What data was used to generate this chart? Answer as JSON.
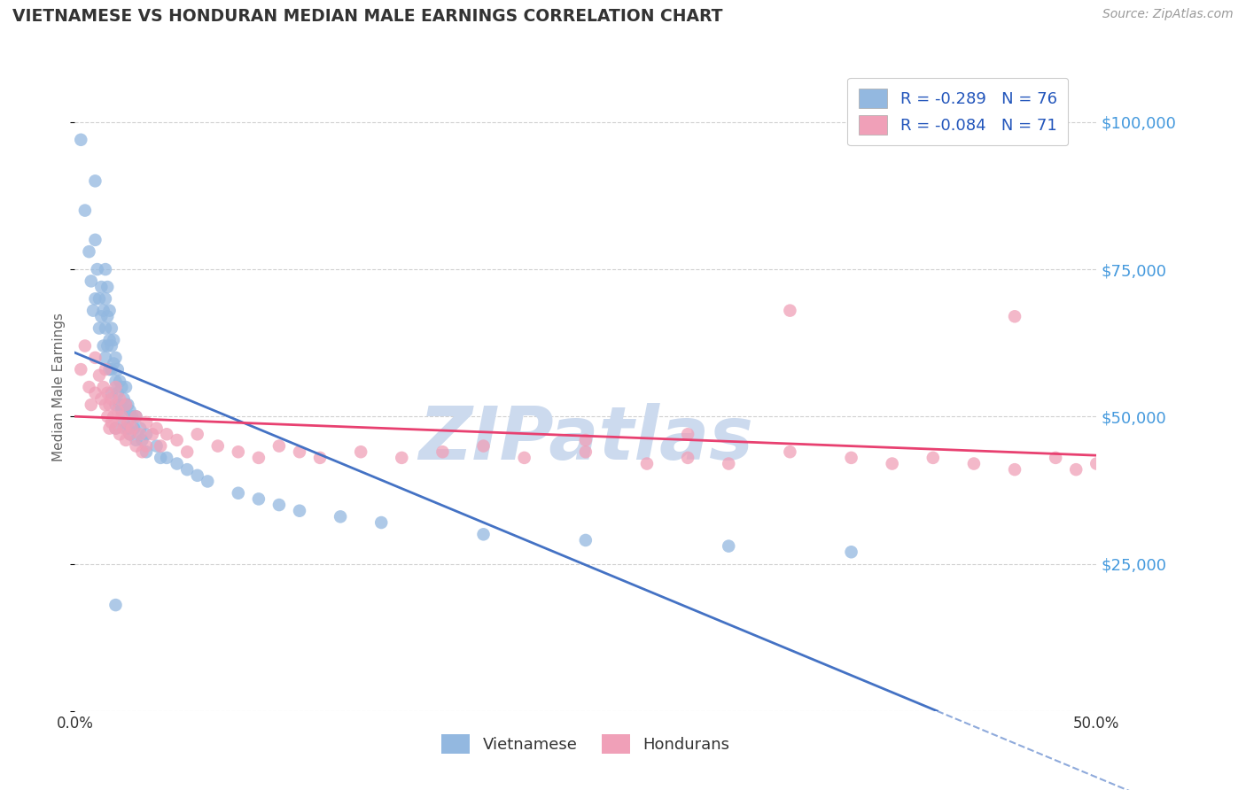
{
  "title": "VIETNAMESE VS HONDURAN MEDIAN MALE EARNINGS CORRELATION CHART",
  "source_text": "Source: ZipAtlas.com",
  "ylabel": "Median Male Earnings",
  "xlim": [
    0.0,
    0.5
  ],
  "ylim": [
    0,
    110000
  ],
  "yticks": [
    0,
    25000,
    50000,
    75000,
    100000
  ],
  "ytick_labels": [
    "",
    "$25,000",
    "$50,000",
    "$75,000",
    "$100,000"
  ],
  "xticks": [
    0.0,
    0.05,
    0.1,
    0.15,
    0.2,
    0.25,
    0.3,
    0.35,
    0.4,
    0.45,
    0.5
  ],
  "xtick_labels": [
    "0.0%",
    "",
    "",
    "",
    "",
    "",
    "",
    "",
    "",
    "",
    "50.0%"
  ],
  "background_color": "#ffffff",
  "grid_color": "#d0d0d0",
  "vietnamese_color": "#93b8e0",
  "honduran_color": "#f0a0b8",
  "trend_viet_color": "#4472c4",
  "trend_hond_color": "#e84070",
  "title_color": "#333333",
  "yaxis_label_color": "#4499dd",
  "watermark_color": "#ccdaee",
  "watermark": "ZIPatlas",
  "legend_R_viet": "-0.289",
  "legend_N_viet": "76",
  "legend_R_hond": "-0.084",
  "legend_N_hond": "71",
  "legend_text_color": "#2255bb",
  "viet_scatter_x": [
    0.003,
    0.005,
    0.007,
    0.008,
    0.009,
    0.01,
    0.01,
    0.01,
    0.011,
    0.012,
    0.012,
    0.013,
    0.013,
    0.014,
    0.014,
    0.015,
    0.015,
    0.015,
    0.015,
    0.016,
    0.016,
    0.016,
    0.017,
    0.017,
    0.017,
    0.018,
    0.018,
    0.018,
    0.018,
    0.019,
    0.019,
    0.02,
    0.02,
    0.02,
    0.02,
    0.021,
    0.021,
    0.022,
    0.022,
    0.023,
    0.023,
    0.024,
    0.024,
    0.025,
    0.025,
    0.025,
    0.026,
    0.026,
    0.027,
    0.027,
    0.028,
    0.029,
    0.03,
    0.03,
    0.032,
    0.033,
    0.035,
    0.035,
    0.04,
    0.042,
    0.045,
    0.05,
    0.055,
    0.06,
    0.065,
    0.08,
    0.09,
    0.1,
    0.11,
    0.13,
    0.15,
    0.2,
    0.25,
    0.32,
    0.38,
    0.02
  ],
  "viet_scatter_y": [
    97000,
    85000,
    78000,
    73000,
    68000,
    90000,
    80000,
    70000,
    75000,
    70000,
    65000,
    72000,
    67000,
    68000,
    62000,
    75000,
    70000,
    65000,
    60000,
    72000,
    67000,
    62000,
    68000,
    63000,
    58000,
    65000,
    62000,
    58000,
    54000,
    63000,
    59000,
    60000,
    56000,
    52000,
    48000,
    58000,
    54000,
    56000,
    52000,
    55000,
    51000,
    53000,
    49000,
    55000,
    52000,
    48000,
    52000,
    48000,
    51000,
    47000,
    50000,
    48000,
    50000,
    46000,
    48000,
    46000,
    47000,
    44000,
    45000,
    43000,
    43000,
    42000,
    41000,
    40000,
    39000,
    37000,
    36000,
    35000,
    34000,
    33000,
    32000,
    30000,
    29000,
    28000,
    27000,
    18000
  ],
  "hond_scatter_x": [
    0.003,
    0.005,
    0.007,
    0.008,
    0.01,
    0.01,
    0.012,
    0.013,
    0.014,
    0.015,
    0.015,
    0.016,
    0.016,
    0.017,
    0.017,
    0.018,
    0.018,
    0.019,
    0.02,
    0.02,
    0.021,
    0.022,
    0.022,
    0.023,
    0.024,
    0.025,
    0.025,
    0.026,
    0.027,
    0.028,
    0.03,
    0.03,
    0.032,
    0.033,
    0.035,
    0.035,
    0.038,
    0.04,
    0.042,
    0.045,
    0.05,
    0.055,
    0.06,
    0.07,
    0.08,
    0.09,
    0.1,
    0.11,
    0.12,
    0.14,
    0.16,
    0.18,
    0.2,
    0.22,
    0.25,
    0.28,
    0.3,
    0.32,
    0.35,
    0.38,
    0.4,
    0.42,
    0.44,
    0.46,
    0.48,
    0.49,
    0.5,
    0.35,
    0.3,
    0.25,
    0.46
  ],
  "hond_scatter_y": [
    58000,
    62000,
    55000,
    52000,
    60000,
    54000,
    57000,
    53000,
    55000,
    58000,
    52000,
    54000,
    50000,
    52000,
    48000,
    53000,
    49000,
    50000,
    55000,
    48000,
    51000,
    53000,
    47000,
    50000,
    48000,
    52000,
    46000,
    49000,
    47000,
    48000,
    50000,
    45000,
    47000,
    44000,
    49000,
    45000,
    47000,
    48000,
    45000,
    47000,
    46000,
    44000,
    47000,
    45000,
    44000,
    43000,
    45000,
    44000,
    43000,
    44000,
    43000,
    44000,
    45000,
    43000,
    44000,
    42000,
    43000,
    42000,
    44000,
    43000,
    42000,
    43000,
    42000,
    41000,
    43000,
    41000,
    42000,
    68000,
    47000,
    46000,
    67000
  ]
}
